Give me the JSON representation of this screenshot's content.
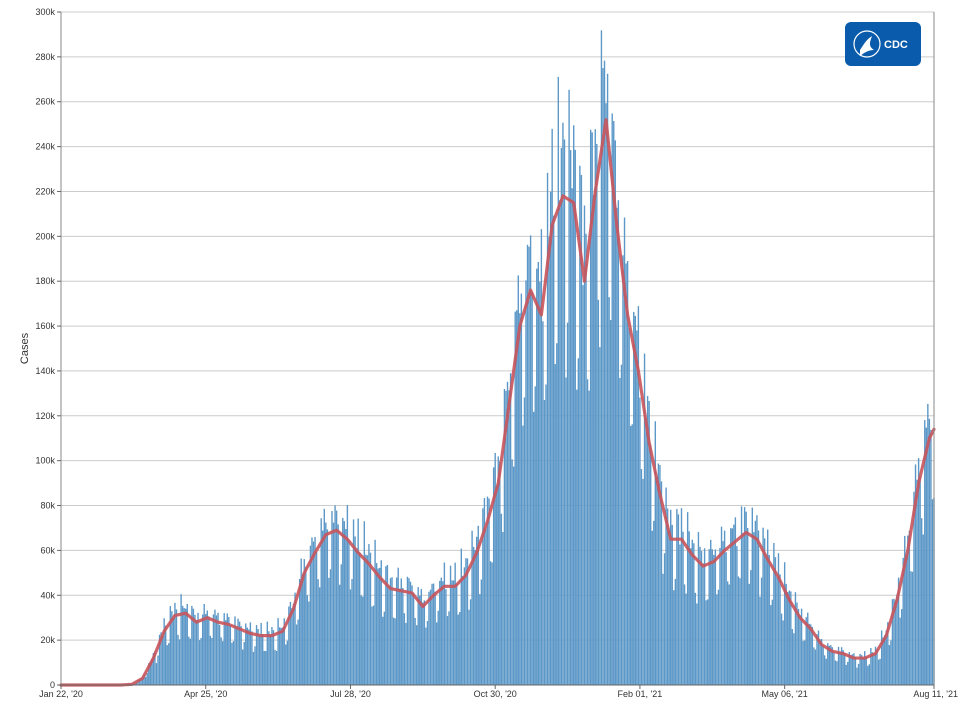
{
  "chart_data": {
    "type": "bar",
    "title": "",
    "xlabel": "",
    "ylabel": "Cases",
    "ylim": [
      0,
      300000
    ],
    "yticks": [
      0,
      20000,
      40000,
      60000,
      80000,
      100000,
      120000,
      140000,
      160000,
      180000,
      200000,
      220000,
      240000,
      260000,
      280000,
      300000
    ],
    "ytick_labels": [
      "0",
      "20k",
      "40k",
      "60k",
      "80k",
      "100k",
      "120k",
      "140k",
      "160k",
      "180k",
      "200k",
      "220k",
      "240k",
      "260k",
      "280k",
      "300k"
    ],
    "x_start": "2020-01-22",
    "x_end": "2021-08-11",
    "xticks": [
      {
        "date": "2020-01-22",
        "label": "Jan 22, '20"
      },
      {
        "date": "2020-04-25",
        "label": "Apr 25, '20"
      },
      {
        "date": "2020-07-28",
        "label": "Jul 28, '20"
      },
      {
        "date": "2020-10-30",
        "label": "Oct 30, '20"
      },
      {
        "date": "2021-02-01",
        "label": "Feb 01, '21"
      },
      {
        "date": "2021-05-06",
        "label": "May 06, '21"
      },
      {
        "date": "2021-08-11",
        "label": "Aug 11, '21"
      }
    ],
    "grid": true,
    "colors": {
      "bars": "#5b97c7",
      "average_line": "#c8545b",
      "grid": "#cccccc",
      "logo_bg": "#0a5bab"
    },
    "series": [
      {
        "name": "",
        "kind": "bar",
        "values_by_date": [
          [
            "2020-01-22",
            0
          ],
          [
            "2020-03-01",
            0
          ],
          [
            "2020-03-08",
            300
          ],
          [
            "2020-03-15",
            3000
          ],
          [
            "2020-03-22",
            12000
          ],
          [
            "2020-03-29",
            24000
          ],
          [
            "2020-04-05",
            31000
          ],
          [
            "2020-04-12",
            32000
          ],
          [
            "2020-04-19",
            28000
          ],
          [
            "2020-04-26",
            30000
          ],
          [
            "2020-05-03",
            28000
          ],
          [
            "2020-05-10",
            27000
          ],
          [
            "2020-05-17",
            25000
          ],
          [
            "2020-05-24",
            23000
          ],
          [
            "2020-05-31",
            22000
          ],
          [
            "2020-06-07",
            22000
          ],
          [
            "2020-06-14",
            24000
          ],
          [
            "2020-06-21",
            34000
          ],
          [
            "2020-06-28",
            50000
          ],
          [
            "2020-07-05",
            59000
          ],
          [
            "2020-07-12",
            67000
          ],
          [
            "2020-07-19",
            69000
          ],
          [
            "2020-07-26",
            65000
          ],
          [
            "2020-08-02",
            59000
          ],
          [
            "2020-08-09",
            54000
          ],
          [
            "2020-08-16",
            48000
          ],
          [
            "2020-08-23",
            43000
          ],
          [
            "2020-08-30",
            42000
          ],
          [
            "2020-09-06",
            41000
          ],
          [
            "2020-09-13",
            35000
          ],
          [
            "2020-09-20",
            40000
          ],
          [
            "2020-09-27",
            44000
          ],
          [
            "2020-10-04",
            44000
          ],
          [
            "2020-10-11",
            49000
          ],
          [
            "2020-10-18",
            59000
          ],
          [
            "2020-10-25",
            73000
          ],
          [
            "2020-11-01",
            90000
          ],
          [
            "2020-11-08",
            125000
          ],
          [
            "2020-11-15",
            160000
          ],
          [
            "2020-11-22",
            176000
          ],
          [
            "2020-11-29",
            165000
          ],
          [
            "2020-12-06",
            205000
          ],
          [
            "2020-12-13",
            218000
          ],
          [
            "2020-12-20",
            215000
          ],
          [
            "2020-12-27",
            180000
          ],
          [
            "2021-01-03",
            220000
          ],
          [
            "2021-01-10",
            252000
          ],
          [
            "2021-01-17",
            205000
          ],
          [
            "2021-01-24",
            165000
          ],
          [
            "2021-01-31",
            140000
          ],
          [
            "2021-02-07",
            108000
          ],
          [
            "2021-02-14",
            85000
          ],
          [
            "2021-02-21",
            65000
          ],
          [
            "2021-02-28",
            65000
          ],
          [
            "2021-03-07",
            58000
          ],
          [
            "2021-03-14",
            53000
          ],
          [
            "2021-03-21",
            55000
          ],
          [
            "2021-03-28",
            60000
          ],
          [
            "2021-04-04",
            64000
          ],
          [
            "2021-04-11",
            68000
          ],
          [
            "2021-04-18",
            65000
          ],
          [
            "2021-04-25",
            56000
          ],
          [
            "2021-05-02",
            48000
          ],
          [
            "2021-05-09",
            38000
          ],
          [
            "2021-05-16",
            30000
          ],
          [
            "2021-05-23",
            25000
          ],
          [
            "2021-05-30",
            18000
          ],
          [
            "2021-06-06",
            15000
          ],
          [
            "2021-06-13",
            14000
          ],
          [
            "2021-06-20",
            12000
          ],
          [
            "2021-06-27",
            12000
          ],
          [
            "2021-07-04",
            14000
          ],
          [
            "2021-07-11",
            22000
          ],
          [
            "2021-07-18",
            38000
          ],
          [
            "2021-07-25",
            60000
          ],
          [
            "2021-08-01",
            90000
          ],
          [
            "2021-08-08",
            110000
          ],
          [
            "2021-08-11",
            114000
          ]
        ]
      },
      {
        "name": "",
        "kind": "line",
        "values_by_date": [
          [
            "2020-01-22",
            0
          ],
          [
            "2020-03-01",
            0
          ],
          [
            "2020-03-08",
            300
          ],
          [
            "2020-03-15",
            3000
          ],
          [
            "2020-03-22",
            12000
          ],
          [
            "2020-03-29",
            24000
          ],
          [
            "2020-04-05",
            31000
          ],
          [
            "2020-04-12",
            32000
          ],
          [
            "2020-04-19",
            28000
          ],
          [
            "2020-04-26",
            30000
          ],
          [
            "2020-05-03",
            28000
          ],
          [
            "2020-05-10",
            27000
          ],
          [
            "2020-05-17",
            25000
          ],
          [
            "2020-05-24",
            23000
          ],
          [
            "2020-05-31",
            22000
          ],
          [
            "2020-06-07",
            22000
          ],
          [
            "2020-06-14",
            24000
          ],
          [
            "2020-06-21",
            34000
          ],
          [
            "2020-06-28",
            50000
          ],
          [
            "2020-07-05",
            59000
          ],
          [
            "2020-07-12",
            67000
          ],
          [
            "2020-07-19",
            69000
          ],
          [
            "2020-07-26",
            65000
          ],
          [
            "2020-08-02",
            59000
          ],
          [
            "2020-08-09",
            54000
          ],
          [
            "2020-08-16",
            48000
          ],
          [
            "2020-08-23",
            43000
          ],
          [
            "2020-08-30",
            42000
          ],
          [
            "2020-09-06",
            41000
          ],
          [
            "2020-09-13",
            35000
          ],
          [
            "2020-09-20",
            40000
          ],
          [
            "2020-09-27",
            44000
          ],
          [
            "2020-10-04",
            44000
          ],
          [
            "2020-10-11",
            49000
          ],
          [
            "2020-10-18",
            59000
          ],
          [
            "2020-10-25",
            73000
          ],
          [
            "2020-11-01",
            90000
          ],
          [
            "2020-11-08",
            125000
          ],
          [
            "2020-11-15",
            160000
          ],
          [
            "2020-11-22",
            176000
          ],
          [
            "2020-11-29",
            165000
          ],
          [
            "2020-12-06",
            205000
          ],
          [
            "2020-12-13",
            218000
          ],
          [
            "2020-12-20",
            215000
          ],
          [
            "2020-12-27",
            180000
          ],
          [
            "2021-01-03",
            220000
          ],
          [
            "2021-01-10",
            252000
          ],
          [
            "2021-01-17",
            205000
          ],
          [
            "2021-01-24",
            165000
          ],
          [
            "2021-01-31",
            140000
          ],
          [
            "2021-02-07",
            108000
          ],
          [
            "2021-02-14",
            85000
          ],
          [
            "2021-02-21",
            65000
          ],
          [
            "2021-02-28",
            65000
          ],
          [
            "2021-03-07",
            58000
          ],
          [
            "2021-03-14",
            53000
          ],
          [
            "2021-03-21",
            55000
          ],
          [
            "2021-03-28",
            60000
          ],
          [
            "2021-04-04",
            64000
          ],
          [
            "2021-04-11",
            68000
          ],
          [
            "2021-04-18",
            65000
          ],
          [
            "2021-04-25",
            56000
          ],
          [
            "2021-05-02",
            48000
          ],
          [
            "2021-05-09",
            38000
          ],
          [
            "2021-05-16",
            30000
          ],
          [
            "2021-05-23",
            25000
          ],
          [
            "2021-05-30",
            18000
          ],
          [
            "2021-06-06",
            15000
          ],
          [
            "2021-06-13",
            14000
          ],
          [
            "2021-06-20",
            12000
          ],
          [
            "2021-06-27",
            12000
          ],
          [
            "2021-07-04",
            14000
          ],
          [
            "2021-07-11",
            22000
          ],
          [
            "2021-07-18",
            38000
          ],
          [
            "2021-07-25",
            60000
          ],
          [
            "2021-08-01",
            90000
          ],
          [
            "2021-08-08",
            110000
          ],
          [
            "2021-08-11",
            114000
          ]
        ]
      }
    ]
  },
  "logo": {
    "text": "CDC",
    "icon": "hhs-eagle-icon"
  }
}
